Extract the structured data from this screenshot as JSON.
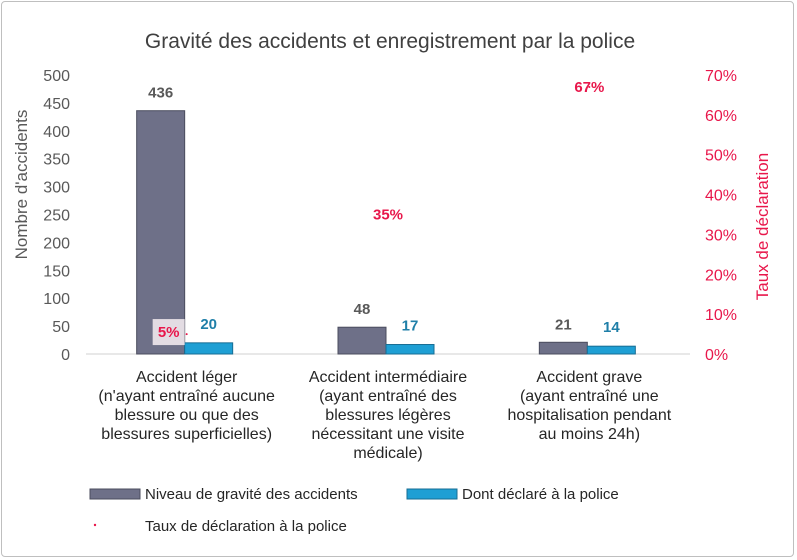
{
  "chart_data": {
    "type": "bar",
    "title": "Gravité des accidents et enregistrement par la police",
    "ylabel": "Nombre d'accidents",
    "y2label": "Taux de déclaration",
    "ylim": [
      0,
      500
    ],
    "y2lim": [
      0,
      0.7
    ],
    "yticks": [
      "0",
      "50",
      "100",
      "150",
      "200",
      "250",
      "300",
      "350",
      "400",
      "450",
      "500"
    ],
    "y2ticks": [
      "0%",
      "10%",
      "20%",
      "30%",
      "40%",
      "50%",
      "60%",
      "70%"
    ],
    "categories": [
      [
        "Accident léger",
        "(n'ayant entraîné aucune",
        "blessure ou que des",
        "blessures superficielles)"
      ],
      [
        "Accident intermédiaire",
        "(ayant entraîné des",
        "blessures légères",
        "nécessitant une visite",
        "médicale)"
      ],
      [
        "Accident grave",
        "(ayant entraîné une",
        "hospitalisation pendant",
        "au moins 24h)"
      ]
    ],
    "series": [
      {
        "name": "Niveau de gravité des accidents",
        "values": [
          436,
          48,
          21
        ],
        "labels": [
          "436",
          "48",
          "21"
        ],
        "color": "#6e7088"
      },
      {
        "name": "Dont déclaré à la police",
        "values": [
          20,
          17,
          14
        ],
        "labels": [
          "20",
          "17",
          "14"
        ],
        "color": "#1e9fd4"
      },
      {
        "name": "Taux de déclaration à la police",
        "values": [
          0.05,
          0.35,
          0.67
        ],
        "labels": [
          "5%",
          "35%",
          "67%"
        ],
        "color": "#e8174b",
        "axis": "right"
      }
    ],
    "legend_position": "bottom"
  }
}
